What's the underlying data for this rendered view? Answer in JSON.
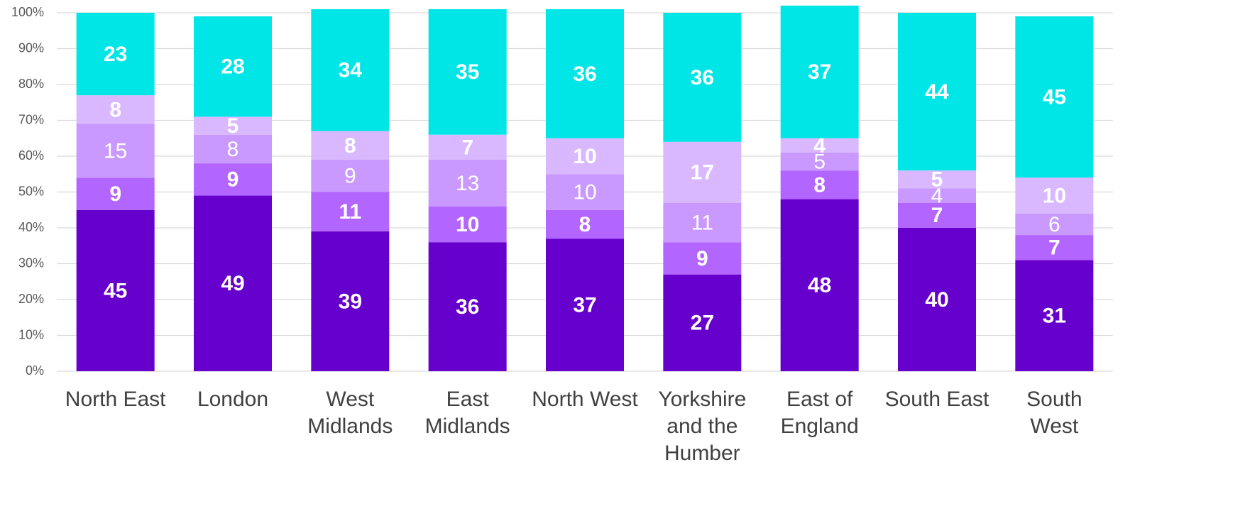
{
  "chart_data": {
    "type": "stacked_bar",
    "categories": [
      "North East",
      "London",
      "West Midlands",
      "East Midlands",
      "North West",
      "Yorkshire and the Humber",
      "East of England",
      "South East",
      "South West"
    ],
    "series": [
      {
        "color": "#6600cc",
        "values": [
          45,
          49,
          39,
          36,
          37,
          27,
          48,
          40,
          31
        ]
      },
      {
        "color": "#b366ff",
        "values": [
          9,
          9,
          11,
          10,
          8,
          9,
          8,
          7,
          7
        ]
      },
      {
        "color": "#c999ff",
        "values": [
          15,
          8,
          9,
          13,
          10,
          11,
          5,
          4,
          6
        ]
      },
      {
        "color": "#d9b8ff",
        "values": [
          8,
          5,
          8,
          7,
          10,
          17,
          4,
          5,
          10
        ]
      },
      {
        "color": "#00e5e5",
        "values": [
          23,
          28,
          34,
          35,
          36,
          36,
          37,
          44,
          45
        ]
      }
    ],
    "ylim": [
      0,
      100
    ],
    "yticks": [
      {
        "value": 0,
        "label": "0%"
      },
      {
        "value": 10,
        "label": "10%"
      },
      {
        "value": 20,
        "label": "20%"
      },
      {
        "value": 30,
        "label": "30%"
      },
      {
        "value": 40,
        "label": "40%"
      },
      {
        "value": 50,
        "label": "50%"
      },
      {
        "value": 60,
        "label": "60%"
      },
      {
        "value": 70,
        "label": "70%"
      },
      {
        "value": 80,
        "label": "80%"
      },
      {
        "value": 90,
        "label": "90%"
      },
      {
        "value": 100,
        "label": "100%"
      }
    ],
    "grid": true
  }
}
